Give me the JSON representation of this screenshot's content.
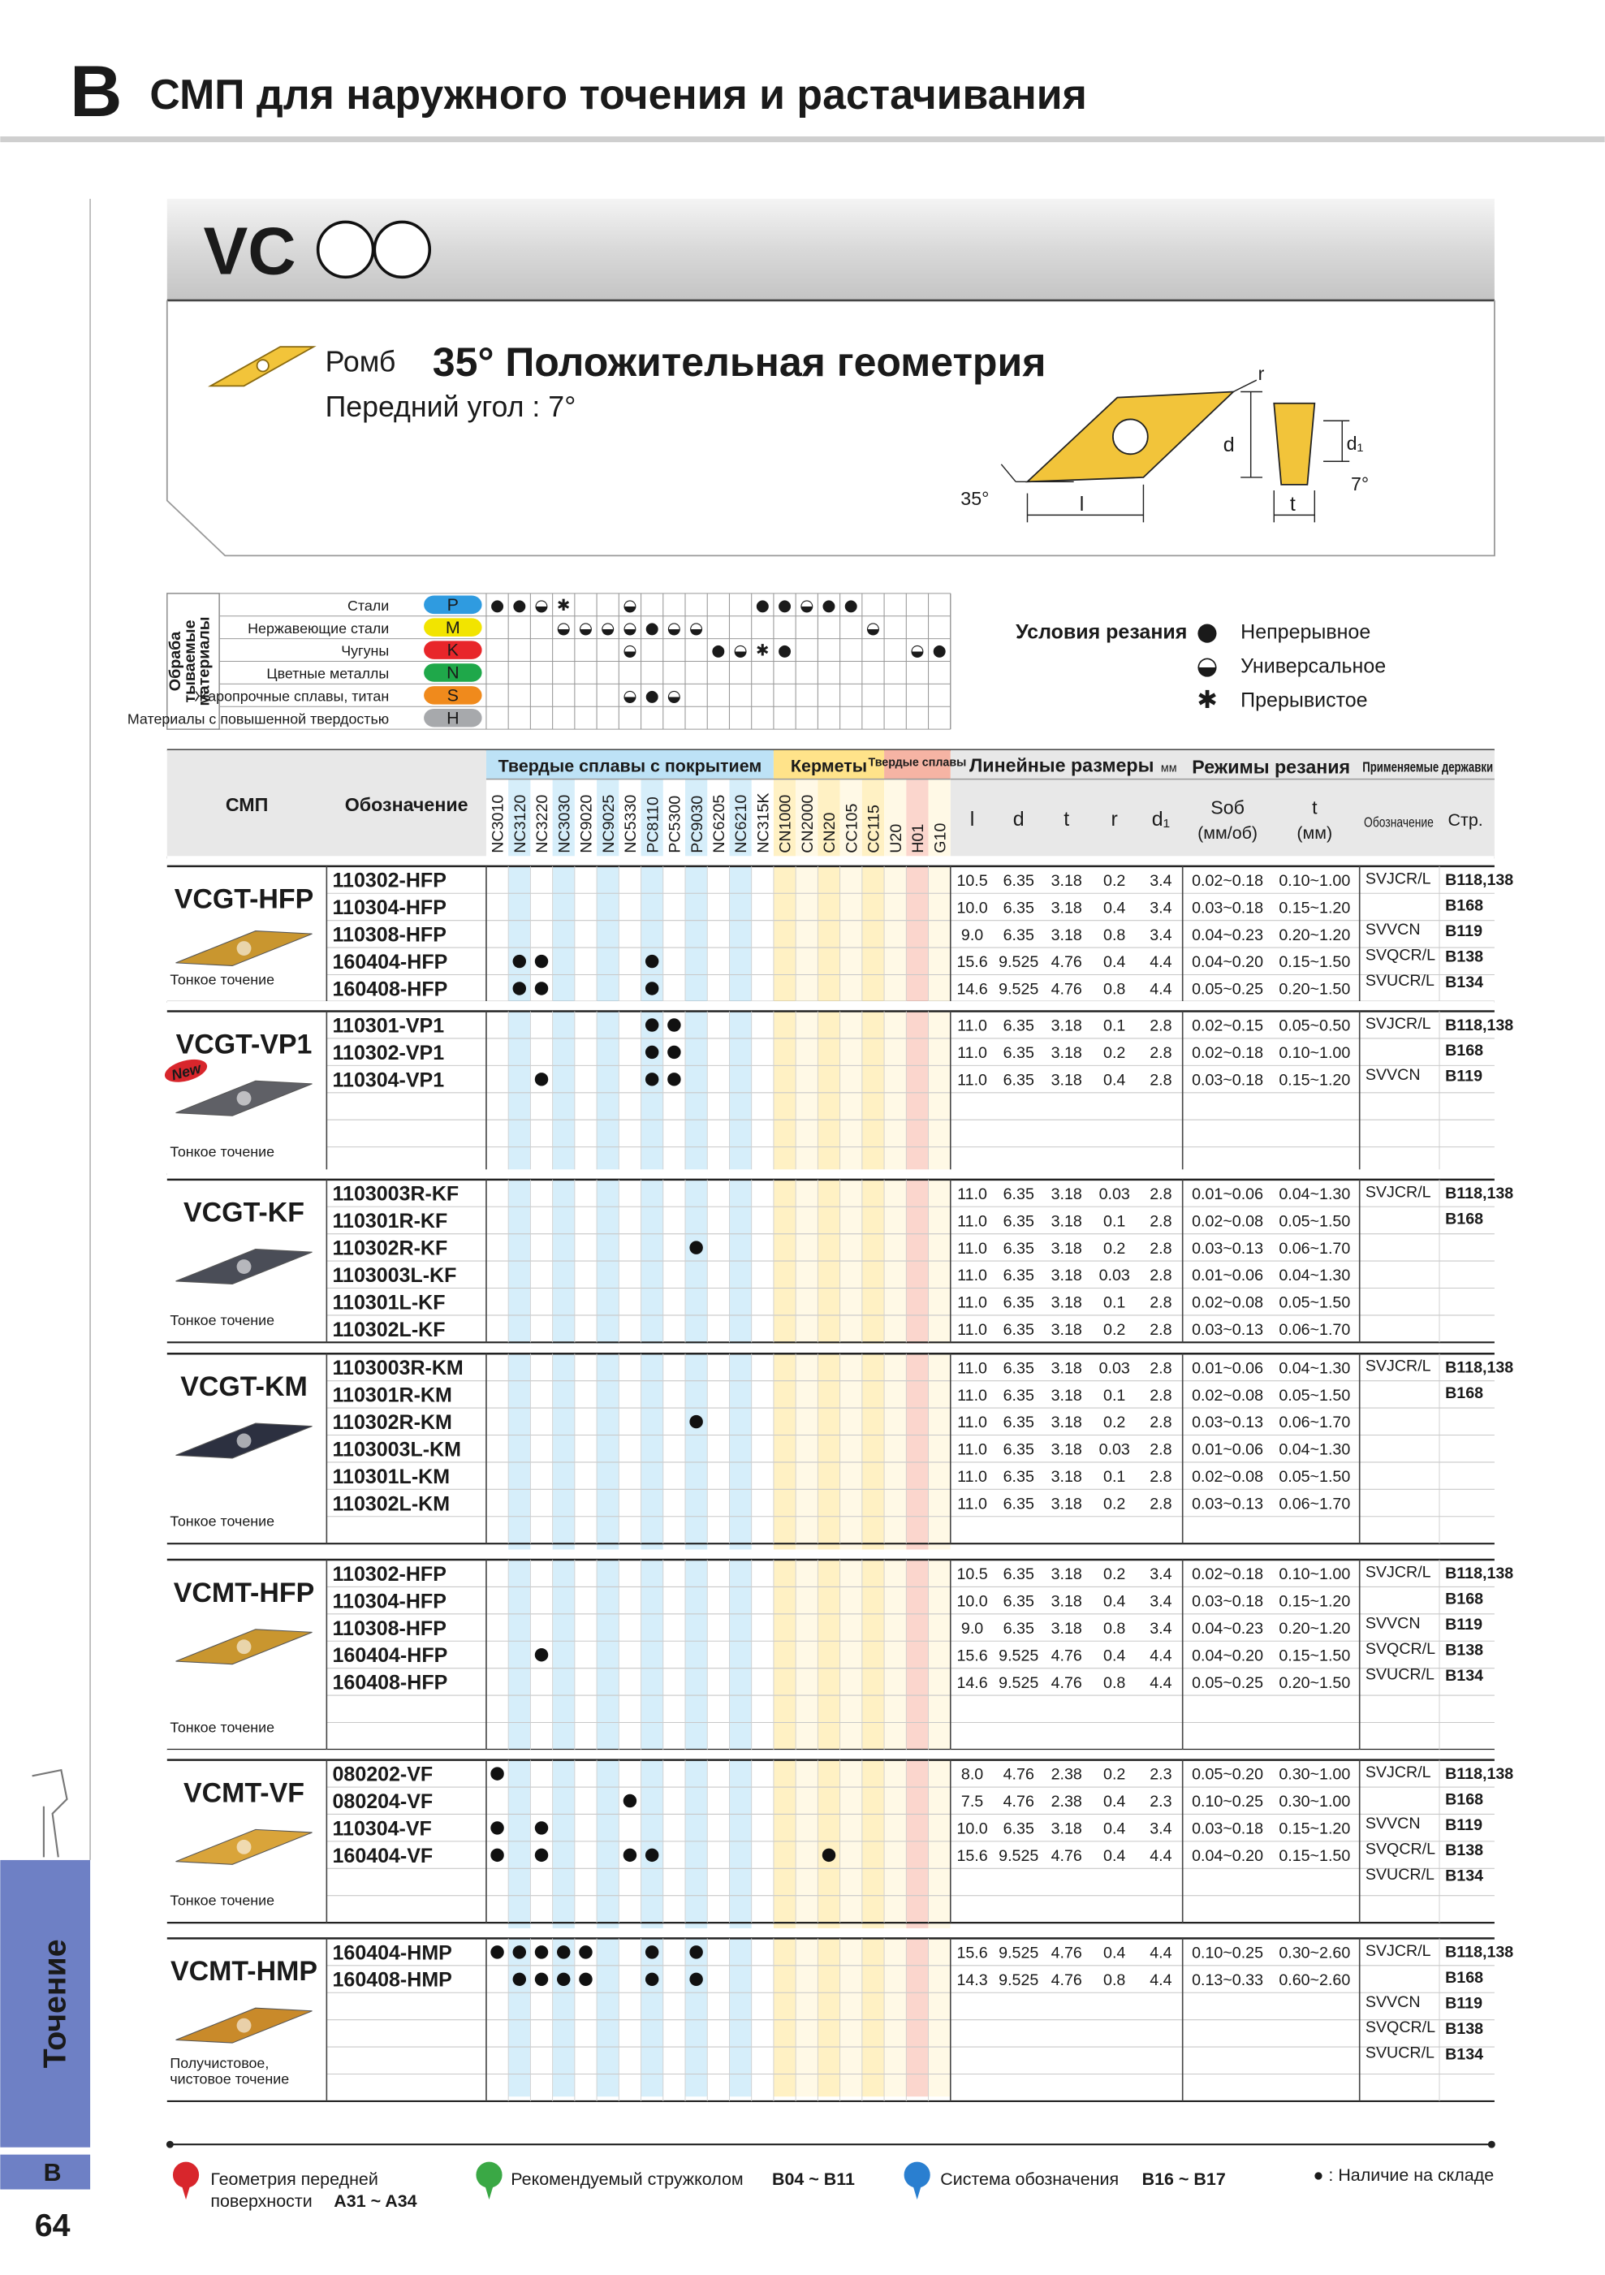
{
  "header": {
    "letter": "B",
    "title": "СМП для наружного точения и растачивания"
  },
  "section": {
    "code": "VC",
    "shape": "Ромб",
    "geometry": "35° Положительная геометрия",
    "rake": "Передний угол : 7°",
    "diagram": {
      "r": "r",
      "d": "d",
      "d1": "d₁",
      "clearance": "7°",
      "angle": "35°",
      "l": "l",
      "t": "t"
    }
  },
  "materials": {
    "side_label": [
      "Обраба",
      "тываемые",
      "материалы"
    ],
    "rows": [
      {
        "name": "Стали",
        "code": "P",
        "color": "#2f9be0",
        "marks": [
          {
            "grade": "NC3010",
            "symbol": "●"
          },
          {
            "grade": "NC3120",
            "symbol": "●"
          },
          {
            "grade": "NC3220",
            "symbol": "◒"
          },
          {
            "grade": "NC3030",
            "symbol": "✱"
          },
          {
            "grade": "NC5330",
            "symbol": "◒"
          },
          {
            "grade": "NC315K",
            "symbol": "●"
          },
          {
            "grade": "CN1000",
            "symbol": "●"
          },
          {
            "grade": "CN2000",
            "symbol": "◒"
          },
          {
            "grade": "CN20",
            "symbol": "●"
          },
          {
            "grade": "CC105",
            "symbol": "●"
          }
        ]
      },
      {
        "name": "Нержавеющие стали",
        "code": "M",
        "color": "#f2e400",
        "marks": [
          {
            "grade": "NC3030",
            "symbol": "◒"
          },
          {
            "grade": "NC9020",
            "symbol": "◒"
          },
          {
            "grade": "NC9025",
            "symbol": "◒"
          },
          {
            "grade": "NC5330",
            "symbol": "◒"
          },
          {
            "grade": "PC8110",
            "symbol": "●"
          },
          {
            "grade": "PC5300",
            "symbol": "◒"
          },
          {
            "grade": "PC9030",
            "symbol": "◒"
          },
          {
            "grade": "CC115",
            "symbol": "◒"
          }
        ]
      },
      {
        "name": "Чугуны",
        "code": "K",
        "color": "#e8262a",
        "marks": [
          {
            "grade": "NC5330",
            "symbol": "◒"
          },
          {
            "grade": "NC6205",
            "symbol": "●"
          },
          {
            "grade": "NC6210",
            "symbol": "◒"
          },
          {
            "grade": "NC315K",
            "symbol": "✱"
          },
          {
            "grade": "CN1000",
            "symbol": "●"
          },
          {
            "grade": "H01",
            "symbol": "◒"
          },
          {
            "grade": "G10",
            "symbol": "●"
          }
        ]
      },
      {
        "name": "Цветные металлы",
        "code": "N",
        "color": "#1fa84a",
        "marks": []
      },
      {
        "name": "Жаропрочные сплавы, титан",
        "code": "S",
        "color": "#f08a1c",
        "marks": [
          {
            "grade": "NC5330",
            "symbol": "◒"
          },
          {
            "grade": "PC8110",
            "symbol": "●"
          },
          {
            "grade": "PC5300",
            "symbol": "◒"
          }
        ]
      },
      {
        "name": "Материалы с повышенной твердостью",
        "code": "H",
        "color": "#a7a9ac",
        "marks": []
      }
    ],
    "legend": {
      "title": "Условия резания",
      "items": [
        {
          "symbol": "●",
          "label": "Непрерывное"
        },
        {
          "symbol": "◒",
          "label": "Универсальное"
        },
        {
          "symbol": "✱",
          "label": "Прерывистое"
        }
      ]
    }
  },
  "table": {
    "insert_header": "СМП",
    "code_header": "Обозначение",
    "grade_groups": [
      {
        "name": "Твердые сплавы с покрытием",
        "color": "#bde2f6",
        "stripe": "#d6eefa",
        "grades": [
          "NC3010",
          "NC3120",
          "NC3220",
          "NC3030",
          "NC9020",
          "NC9025",
          "NC5330",
          "PC8110",
          "PC5300",
          "PC9030",
          "NC6205",
          "NC6210",
          "NC315K"
        ]
      },
      {
        "name": "Керметы",
        "color": "#ffe38a",
        "stripe": "#fff1c4",
        "grades": [
          "CN1000",
          "CN2000",
          "CN20",
          "CC105",
          "CC115"
        ]
      },
      {
        "name": "Твердые сплавы",
        "color": "#f6b4a4",
        "stripe": "#fbd6cd",
        "grades": [
          "U20",
          "H01",
          "G10"
        ]
      }
    ],
    "dims_header": "Линейные размеры",
    "dims_unit": "мм",
    "dims": [
      "l",
      "d",
      "t",
      "r",
      "d₁"
    ],
    "cutting_header": "Режимы резания",
    "cutting": [
      {
        "label": "Sоб",
        "unit": "(мм/об)"
      },
      {
        "label": "t",
        "unit": "(мм)"
      }
    ],
    "holders_header": "Применяемые державки",
    "holder_cols": [
      "Обозначение",
      "Стр."
    ],
    "groups": [
      {
        "name": "VCGT-HFP",
        "insert_color": "#c9962f",
        "note": [
          "Тонкое точение"
        ],
        "rows": [
          {
            "code": "110302-HFP",
            "stock": [],
            "dims": [
              "10.5",
              "6.35",
              "3.18",
              "0.2",
              "3.4"
            ],
            "feed": "0.02~0.18",
            "depth": "0.10~1.00"
          },
          {
            "code": "110304-HFP",
            "stock": [],
            "dims": [
              "10.0",
              "6.35",
              "3.18",
              "0.4",
              "3.4"
            ],
            "feed": "0.03~0.18",
            "depth": "0.15~1.20"
          },
          {
            "code": "110308-HFP",
            "stock": [],
            "dims": [
              "9.0",
              "6.35",
              "3.18",
              "0.8",
              "3.4"
            ],
            "feed": "0.04~0.23",
            "depth": "0.20~1.20"
          },
          {
            "code": "160404-HFP",
            "stock": [
              "NC3120",
              "NC3220",
              "PC8110"
            ],
            "dims": [
              "15.6",
              "9.525",
              "4.76",
              "0.4",
              "4.4"
            ],
            "feed": "0.04~0.20",
            "depth": "0.15~1.50"
          },
          {
            "code": "160408-HFP",
            "stock": [
              "NC3120",
              "NC3220",
              "PC8110"
            ],
            "dims": [
              "14.6",
              "9.525",
              "4.76",
              "0.8",
              "4.4"
            ],
            "feed": "0.05~0.25",
            "depth": "0.20~1.50"
          }
        ],
        "holders": [
          {
            "name": "SVJCR/L",
            "pages": [
              "B118,138",
              "B168"
            ]
          },
          {
            "name": "SVVCN",
            "pages": [
              "B119"
            ]
          },
          {
            "name": "SVQCR/L",
            "pages": [
              "B138"
            ]
          },
          {
            "name": "SVUCR/L",
            "pages": [
              "B134"
            ]
          }
        ]
      },
      {
        "name": "VCGT-VP1",
        "badge": "New",
        "insert_color": "#5f6066",
        "note": [
          "Тонкое точение"
        ],
        "rows": [
          {
            "code": "110301-VP1",
            "stock": [
              "PC8110",
              "PC5300"
            ],
            "dims": [
              "11.0",
              "6.35",
              "3.18",
              "0.1",
              "2.8"
            ],
            "feed": "0.02~0.15",
            "depth": "0.05~0.50"
          },
          {
            "code": "110302-VP1",
            "stock": [
              "PC8110",
              "PC5300"
            ],
            "dims": [
              "11.0",
              "6.35",
              "3.18",
              "0.2",
              "2.8"
            ],
            "feed": "0.02~0.18",
            "depth": "0.10~1.00"
          },
          {
            "code": "110304-VP1",
            "stock": [
              "NC3220",
              "PC8110",
              "PC5300"
            ],
            "dims": [
              "11.0",
              "6.35",
              "3.18",
              "0.4",
              "2.8"
            ],
            "feed": "0.03~0.18",
            "depth": "0.15~1.20"
          }
        ],
        "holders": [
          {
            "name": "SVJCR/L",
            "pages": [
              "B118,138",
              "B168"
            ]
          },
          {
            "name": "SVVCN",
            "pages": [
              "B119"
            ]
          }
        ]
      },
      {
        "name": "VCGT-KF",
        "insert_color": "#4a4d57",
        "note": [
          "Тонкое точение"
        ],
        "rows": [
          {
            "code": "1103003R-KF",
            "stock": [],
            "dims": [
              "11.0",
              "6.35",
              "3.18",
              "0.03",
              "2.8"
            ],
            "feed": "0.01~0.06",
            "depth": "0.04~1.30"
          },
          {
            "code": "110301R-KF",
            "stock": [],
            "dims": [
              "11.0",
              "6.35",
              "3.18",
              "0.1",
              "2.8"
            ],
            "feed": "0.02~0.08",
            "depth": "0.05~1.50"
          },
          {
            "code": "110302R-KF",
            "stock": [
              "PC9030"
            ],
            "dims": [
              "11.0",
              "6.35",
              "3.18",
              "0.2",
              "2.8"
            ],
            "feed": "0.03~0.13",
            "depth": "0.06~1.70"
          },
          {
            "code": "1103003L-KF",
            "stock": [],
            "dims": [
              "11.0",
              "6.35",
              "3.18",
              "0.03",
              "2.8"
            ],
            "feed": "0.01~0.06",
            "depth": "0.04~1.30"
          },
          {
            "code": "110301L-KF",
            "stock": [],
            "dims": [
              "11.0",
              "6.35",
              "3.18",
              "0.1",
              "2.8"
            ],
            "feed": "0.02~0.08",
            "depth": "0.05~1.50"
          },
          {
            "code": "110302L-KF",
            "stock": [],
            "dims": [
              "11.0",
              "6.35",
              "3.18",
              "0.2",
              "2.8"
            ],
            "feed": "0.03~0.13",
            "depth": "0.06~1.70"
          }
        ],
        "holders": [
          {
            "name": "SVJCR/L",
            "pages": [
              "B118,138",
              "B168"
            ]
          }
        ]
      },
      {
        "name": "VCGT-KM",
        "insert_color": "#2c3040",
        "note": [
          "Тонкое точение"
        ],
        "rows": [
          {
            "code": "1103003R-KM",
            "stock": [],
            "dims": [
              "11.0",
              "6.35",
              "3.18",
              "0.03",
              "2.8"
            ],
            "feed": "0.01~0.06",
            "depth": "0.04~1.30"
          },
          {
            "code": "110301R-KM",
            "stock": [],
            "dims": [
              "11.0",
              "6.35",
              "3.18",
              "0.1",
              "2.8"
            ],
            "feed": "0.02~0.08",
            "depth": "0.05~1.50"
          },
          {
            "code": "110302R-KM",
            "stock": [
              "PC9030"
            ],
            "dims": [
              "11.0",
              "6.35",
              "3.18",
              "0.2",
              "2.8"
            ],
            "feed": "0.03~0.13",
            "depth": "0.06~1.70"
          },
          {
            "code": "1103003L-KM",
            "stock": [],
            "dims": [
              "11.0",
              "6.35",
              "3.18",
              "0.03",
              "2.8"
            ],
            "feed": "0.01~0.06",
            "depth": "0.04~1.30"
          },
          {
            "code": "110301L-KM",
            "stock": [],
            "dims": [
              "11.0",
              "6.35",
              "3.18",
              "0.1",
              "2.8"
            ],
            "feed": "0.02~0.08",
            "depth": "0.05~1.50"
          },
          {
            "code": "110302L-KM",
            "stock": [],
            "dims": [
              "11.0",
              "6.35",
              "3.18",
              "0.2",
              "2.8"
            ],
            "feed": "0.03~0.13",
            "depth": "0.06~1.70"
          }
        ],
        "holders": [
          {
            "name": "SVJCR/L",
            "pages": [
              "B118,138",
              "B168"
            ]
          }
        ]
      },
      {
        "name": "VCMT-HFP",
        "insert_color": "#c9962f",
        "note": [
          "Тонкое точение"
        ],
        "rows": [
          {
            "code": "110302-HFP",
            "stock": [],
            "dims": [
              "10.5",
              "6.35",
              "3.18",
              "0.2",
              "3.4"
            ],
            "feed": "0.02~0.18",
            "depth": "0.10~1.00"
          },
          {
            "code": "110304-HFP",
            "stock": [],
            "dims": [
              "10.0",
              "6.35",
              "3.18",
              "0.4",
              "3.4"
            ],
            "feed": "0.03~0.18",
            "depth": "0.15~1.20"
          },
          {
            "code": "110308-HFP",
            "stock": [],
            "dims": [
              "9.0",
              "6.35",
              "3.18",
              "0.8",
              "3.4"
            ],
            "feed": "0.04~0.23",
            "depth": "0.20~1.20"
          },
          {
            "code": "160404-HFP",
            "stock": [
              "NC3220"
            ],
            "dims": [
              "15.6",
              "9.525",
              "4.76",
              "0.4",
              "4.4"
            ],
            "feed": "0.04~0.20",
            "depth": "0.15~1.50"
          },
          {
            "code": "160408-HFP",
            "stock": [],
            "dims": [
              "14.6",
              "9.525",
              "4.76",
              "0.8",
              "4.4"
            ],
            "feed": "0.05~0.25",
            "depth": "0.20~1.50"
          }
        ],
        "holders": [
          {
            "name": "SVJCR/L",
            "pages": [
              "B118,138",
              "B168"
            ]
          },
          {
            "name": "SVVCN",
            "pages": [
              "B119"
            ]
          },
          {
            "name": "SVQCR/L",
            "pages": [
              "B138"
            ]
          },
          {
            "name": "SVUCR/L",
            "pages": [
              "B134"
            ]
          }
        ]
      },
      {
        "name": "VCMT-VF",
        "insert_color": "#d9a43a",
        "note": [
          "Тонкое точение"
        ],
        "rows": [
          {
            "code": "080202-VF",
            "stock": [
              "NC3010"
            ],
            "dims": [
              "8.0",
              "4.76",
              "2.38",
              "0.2",
              "2.3"
            ],
            "feed": "0.05~0.20",
            "depth": "0.30~1.00"
          },
          {
            "code": "080204-VF",
            "stock": [
              "NC5330"
            ],
            "dims": [
              "7.5",
              "4.76",
              "2.38",
              "0.4",
              "2.3"
            ],
            "feed": "0.10~0.25",
            "depth": "0.30~1.00"
          },
          {
            "code": "110304-VF",
            "stock": [
              "NC3010",
              "NC3220"
            ],
            "dims": [
              "10.0",
              "6.35",
              "3.18",
              "0.4",
              "3.4"
            ],
            "feed": "0.03~0.18",
            "depth": "0.15~1.20"
          },
          {
            "code": "160404-VF",
            "stock": [
              "NC3010",
              "NC3220",
              "NC5330",
              "PC8110",
              "CN20"
            ],
            "dims": [
              "15.6",
              "9.525",
              "4.76",
              "0.4",
              "4.4"
            ],
            "feed": "0.04~0.20",
            "depth": "0.15~1.50"
          }
        ],
        "holders": [
          {
            "name": "SVJCR/L",
            "pages": [
              "B118,138",
              "B168"
            ]
          },
          {
            "name": "SVVCN",
            "pages": [
              "B119"
            ]
          },
          {
            "name": "SVQCR/L",
            "pages": [
              "B138"
            ]
          },
          {
            "name": "SVUCR/L",
            "pages": [
              "B134"
            ]
          }
        ]
      },
      {
        "name": "VCMT-HMP",
        "insert_color": "#c98a2a",
        "note": [
          "Получистовое,",
          "чистовое точение"
        ],
        "rows": [
          {
            "code": "160404-HMP",
            "stock": [
              "NC3010",
              "NC3120",
              "NC3220",
              "NC3030",
              "NC9020",
              "PC8110",
              "PC9030"
            ],
            "dims": [
              "15.6",
              "9.525",
              "4.76",
              "0.4",
              "4.4"
            ],
            "feed": "0.10~0.25",
            "depth": "0.30~2.60"
          },
          {
            "code": "160408-HMP",
            "stock": [
              "NC3120",
              "NC3220",
              "NC3030",
              "NC9020",
              "PC8110",
              "PC9030"
            ],
            "dims": [
              "14.3",
              "9.525",
              "4.76",
              "0.8",
              "4.4"
            ],
            "feed": "0.13~0.33",
            "depth": "0.60~2.60"
          }
        ],
        "holders": [
          {
            "name": "SVJCR/L",
            "pages": [
              "B118,138",
              "B168"
            ]
          },
          {
            "name": "SVVCN",
            "pages": [
              "B119"
            ]
          },
          {
            "name": "SVQCR/L",
            "pages": [
              "B138"
            ]
          },
          {
            "name": "SVUCR/L",
            "pages": [
              "B134"
            ]
          }
        ]
      }
    ]
  },
  "footer": {
    "links": [
      {
        "label": [
          "Геометрия передней",
          "поверхности"
        ],
        "ref": "A31 ~ A34",
        "color": "#d8262c"
      },
      {
        "label": [
          "Рекомендуемый стружколом"
        ],
        "ref": "B04 ~ B11",
        "color": "#3aa845"
      },
      {
        "label": [
          "Система обозначения"
        ],
        "ref": "B16 ~ B17",
        "color": "#2a7fd0"
      }
    ],
    "stock_note": "● : Наличие на складе"
  },
  "side": {
    "tab": "Точение",
    "letter": "B",
    "page": "64"
  }
}
